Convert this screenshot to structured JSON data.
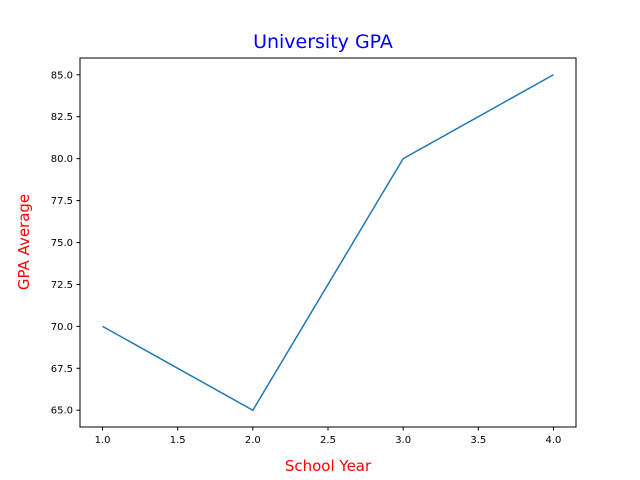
{
  "chart_data": {
    "type": "line",
    "title": "University GPA",
    "xlabel": "School Year",
    "ylabel": "GPA Average",
    "x": [
      1,
      2,
      3,
      4
    ],
    "series": [
      {
        "values": [
          70,
          65,
          80,
          85
        ],
        "color": "#1f77b4"
      }
    ],
    "xlim": [
      0.85,
      4.15
    ],
    "ylim": [
      64.0,
      86.0
    ],
    "xticks": [
      "1.0",
      "1.5",
      "2.0",
      "2.5",
      "3.0",
      "3.5",
      "4.0"
    ],
    "yticks": [
      "65.0",
      "67.5",
      "70.0",
      "72.5",
      "75.0",
      "77.5",
      "80.0",
      "82.5",
      "85.0"
    ],
    "grid": false,
    "title_color": "#0000ff",
    "label_color": "#ff0000"
  }
}
